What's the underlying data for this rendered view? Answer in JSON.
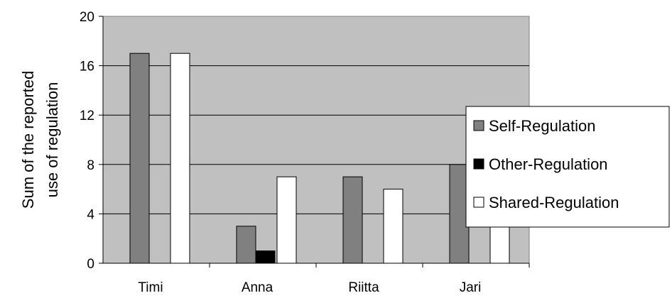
{
  "chart_data": {
    "type": "bar",
    "title": "",
    "xlabel": "",
    "ylabel_lines": [
      "Sum of the reported",
      "use of regulation"
    ],
    "categories": [
      "Timi",
      "Anna",
      "Riitta",
      "Jari"
    ],
    "series": [
      {
        "name": "Self-Regulation",
        "values": [
          17,
          3,
          7,
          8
        ],
        "color": "#808080"
      },
      {
        "name": "Other-Regulation",
        "values": [
          0,
          1,
          0,
          0
        ],
        "color": "#000000"
      },
      {
        "name": "Shared-Regulation",
        "values": [
          17,
          7,
          6,
          9
        ],
        "color": "#ffffff"
      }
    ],
    "ylim": [
      0,
      20
    ],
    "yticks": [
      "0",
      "4",
      "8",
      "12",
      "16",
      "20"
    ],
    "grid": true,
    "plot_background": "#c0c0c0",
    "legend_position": "right"
  }
}
